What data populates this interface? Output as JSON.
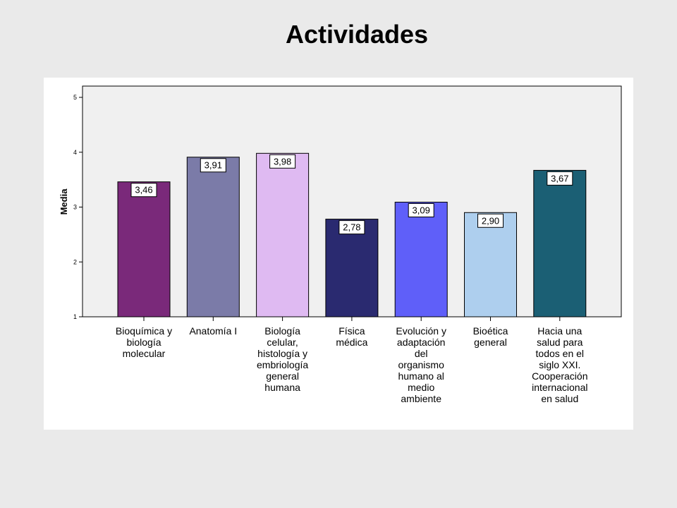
{
  "page": {
    "title": "Actividades"
  },
  "chart_data": {
    "type": "bar",
    "title": "Actividades",
    "xlabel": "",
    "ylabel": "Media",
    "ylim": [
      1,
      5
    ],
    "yticks": [
      1,
      2,
      3,
      4,
      5
    ],
    "grid": false,
    "categories": [
      "Bioquímica y biología molecular",
      "Anatomía I",
      "Biología celular, histología y embriología general humana",
      "Física médica",
      "Evolución y adaptación del organismo humano al medio ambiente",
      "Bioética general",
      "Hacia una salud para todos en el siglo XXI. Cooperación internacional en salud"
    ],
    "category_lines": [
      [
        "Bioquímica y",
        "biología",
        "molecular"
      ],
      [
        "Anatomía I"
      ],
      [
        "Biología",
        "celular,",
        "histología y",
        "embriología",
        "general",
        "humana"
      ],
      [
        "Física",
        "médica"
      ],
      [
        "Evolución y",
        "adaptación",
        "del",
        "organismo",
        "humano al",
        "medio",
        "ambiente"
      ],
      [
        "Bioética",
        "general"
      ],
      [
        "Hacia una",
        "salud para",
        "todos en el",
        "siglo XXI.",
        "Cooperación",
        "internacional",
        "en salud"
      ]
    ],
    "values": [
      3.46,
      3.91,
      3.98,
      2.78,
      3.09,
      2.9,
      3.67
    ],
    "data_labels": [
      "3,46",
      "3,91",
      "3,98",
      "2,78",
      "3,09",
      "2,90",
      "3,67"
    ],
    "colors": [
      "#7a297a",
      "#7b7ba8",
      "#dfbaf2",
      "#2a2a70",
      "#5f5ff9",
      "#aecfee",
      "#1b5f74"
    ]
  }
}
